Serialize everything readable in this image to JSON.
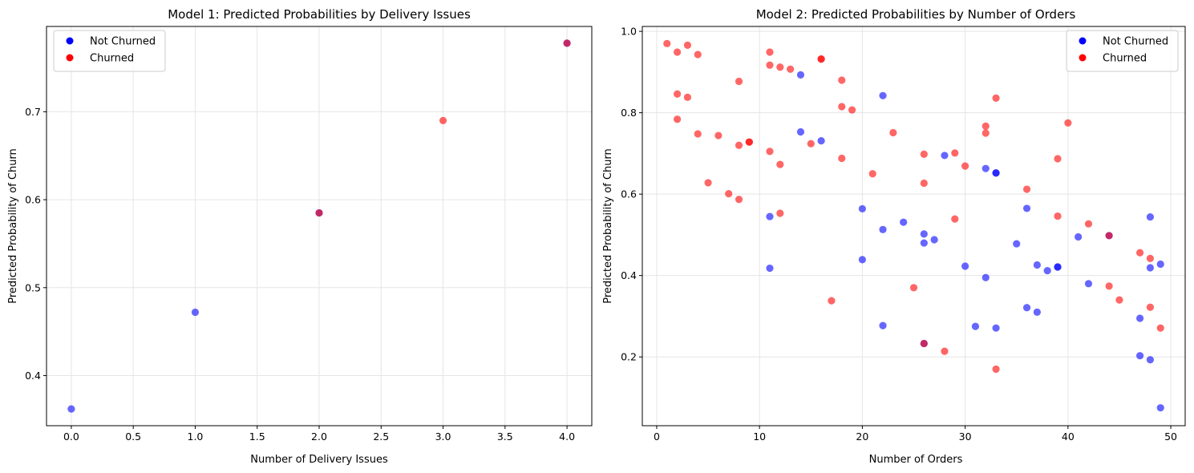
{
  "colors": {
    "not_churned": "#0000ff",
    "churned": "#ff0000",
    "grid": "#e5e5e5",
    "axis": "#000000",
    "legend_border": "#cccccc"
  },
  "chart_data": [
    {
      "type": "scatter",
      "title": "Model 1: Predicted Probabilities by Delivery Issues",
      "xlabel": "Number of Delivery Issues",
      "ylabel": "Predicted Probability of Churn",
      "xlim": [
        -0.2,
        4.2
      ],
      "ylim": [
        0.343,
        0.797
      ],
      "xticks": [
        0.0,
        0.5,
        1.0,
        1.5,
        2.0,
        2.5,
        3.0,
        3.5,
        4.0
      ],
      "xtick_labels": [
        "0.0",
        "0.5",
        "1.0",
        "1.5",
        "2.0",
        "2.5",
        "3.0",
        "3.5",
        "4.0"
      ],
      "yticks": [
        0.4,
        0.5,
        0.6,
        0.7
      ],
      "ytick_labels": [
        "0.4",
        "0.5",
        "0.6",
        "0.7"
      ],
      "grid": true,
      "legend_position": "upper left",
      "legend": [
        "Not Churned",
        "Churned"
      ],
      "series": [
        {
          "name": "Not Churned",
          "color": "#0000ff",
          "alpha": 0.6,
          "points": [
            [
              0,
              0.362
            ],
            [
              1,
              0.472
            ],
            [
              2,
              0.585
            ],
            [
              4,
              0.778
            ]
          ]
        },
        {
          "name": "Churned",
          "color": "#ff0000",
          "alpha": 0.6,
          "points": [
            [
              2,
              0.585
            ],
            [
              3,
              0.69
            ],
            [
              4,
              0.778
            ]
          ]
        }
      ]
    },
    {
      "type": "scatter",
      "title": "Model 2: Predicted Probabilities by Number of Orders",
      "xlabel": "Number of Orders",
      "ylabel": "Predicted Probability of Churn",
      "xlim": [
        -1.4,
        51.4
      ],
      "ylim": [
        0.031,
        1.012
      ],
      "xticks": [
        0,
        10,
        20,
        30,
        40,
        50
      ],
      "xtick_labels": [
        "0",
        "10",
        "20",
        "30",
        "40",
        "50"
      ],
      "yticks": [
        0.2,
        0.4,
        0.6,
        0.8,
        1.0
      ],
      "ytick_labels": [
        "0.2",
        "0.4",
        "0.6",
        "0.8",
        "1.0"
      ],
      "grid": true,
      "legend_position": "upper right",
      "legend": [
        "Not Churned",
        "Churned"
      ],
      "series": [
        {
          "name": "Not Churned",
          "color": "#0000ff",
          "alpha": 0.6,
          "points": [
            [
              11,
              0.545
            ],
            [
              11,
              0.418
            ],
            [
              14,
              0.893
            ],
            [
              14,
              0.753
            ],
            [
              16,
              0.731
            ],
            [
              20,
              0.564
            ],
            [
              20,
              0.439
            ],
            [
              22,
              0.842
            ],
            [
              22,
              0.513
            ],
            [
              22,
              0.277
            ],
            [
              24,
              0.531
            ],
            [
              26,
              0.502
            ],
            [
              26,
              0.48
            ],
            [
              26,
              0.233
            ],
            [
              27,
              0.488
            ],
            [
              28,
              0.695
            ],
            [
              30,
              0.423
            ],
            [
              31,
              0.275
            ],
            [
              32,
              0.663
            ],
            [
              32,
              0.395
            ],
            [
              33,
              0.652
            ],
            [
              33,
              0.652
            ],
            [
              33,
              0.271
            ],
            [
              35,
              0.478
            ],
            [
              36,
              0.565
            ],
            [
              36,
              0.321
            ],
            [
              37,
              0.426
            ],
            [
              37,
              0.31
            ],
            [
              38,
              0.412
            ],
            [
              39,
              0.421
            ],
            [
              39,
              0.421
            ],
            [
              41,
              0.495
            ],
            [
              42,
              0.38
            ],
            [
              44,
              0.498
            ],
            [
              47,
              0.295
            ],
            [
              47,
              0.203
            ],
            [
              48,
              0.544
            ],
            [
              48,
              0.419
            ],
            [
              48,
              0.193
            ],
            [
              49,
              0.428
            ],
            [
              49,
              0.075
            ]
          ]
        },
        {
          "name": "Churned",
          "color": "#ff0000",
          "alpha": 0.6,
          "points": [
            [
              1,
              0.97
            ],
            [
              2,
              0.949
            ],
            [
              2,
              0.846
            ],
            [
              2,
              0.784
            ],
            [
              3,
              0.966
            ],
            [
              3,
              0.838
            ],
            [
              4,
              0.943
            ],
            [
              4,
              0.748
            ],
            [
              5,
              0.628
            ],
            [
              6,
              0.744
            ],
            [
              7,
              0.601
            ],
            [
              8,
              0.877
            ],
            [
              8,
              0.72
            ],
            [
              8,
              0.587
            ],
            [
              9,
              0.728
            ],
            [
              9,
              0.728
            ],
            [
              11,
              0.949
            ],
            [
              11,
              0.917
            ],
            [
              11,
              0.705
            ],
            [
              12,
              0.912
            ],
            [
              12,
              0.673
            ],
            [
              12,
              0.553
            ],
            [
              13,
              0.907
            ],
            [
              15,
              0.724
            ],
            [
              16,
              0.932
            ],
            [
              16,
              0.932
            ],
            [
              17,
              0.338
            ],
            [
              18,
              0.88
            ],
            [
              18,
              0.815
            ],
            [
              18,
              0.688
            ],
            [
              19,
              0.807
            ],
            [
              21,
              0.65
            ],
            [
              23,
              0.751
            ],
            [
              25,
              0.37
            ],
            [
              26,
              0.698
            ],
            [
              26,
              0.627
            ],
            [
              26,
              0.233
            ],
            [
              28,
              0.214
            ],
            [
              29,
              0.701
            ],
            [
              29,
              0.539
            ],
            [
              30,
              0.669
            ],
            [
              32,
              0.767
            ],
            [
              32,
              0.75
            ],
            [
              33,
              0.836
            ],
            [
              33,
              0.17
            ],
            [
              36,
              0.612
            ],
            [
              39,
              0.687
            ],
            [
              39,
              0.546
            ],
            [
              40,
              0.775
            ],
            [
              42,
              0.527
            ],
            [
              44,
              0.498
            ],
            [
              44,
              0.374
            ],
            [
              45,
              0.34
            ],
            [
              47,
              0.456
            ],
            [
              48,
              0.442
            ],
            [
              48,
              0.322
            ],
            [
              49,
              0.271
            ]
          ]
        }
      ]
    }
  ]
}
